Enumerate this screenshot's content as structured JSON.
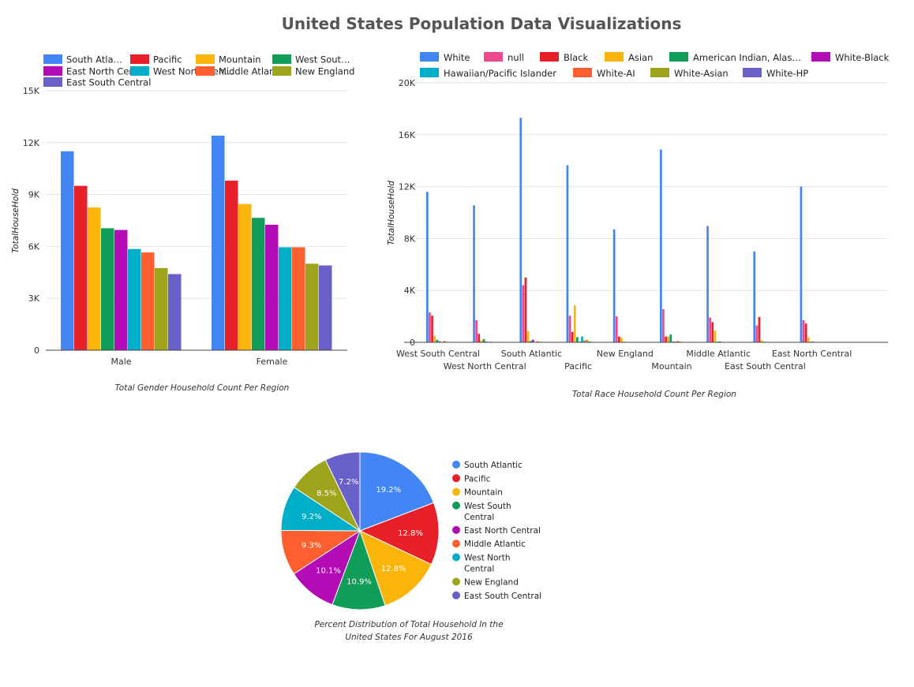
{
  "page": {
    "title": "United States Population Data Visualizations"
  },
  "colors": {
    "regions": {
      "South Atlantic": "#4285f4",
      "Pacific": "#e8202a",
      "Mountain": "#fbb40a",
      "West South Central": "#0f9d58",
      "East North Central": "#b30bb5",
      "West North Central": "#00aec8",
      "Middle Atlantic": "#ff5e2e",
      "New England": "#9ea41b",
      "East South Central": "#6960c9"
    },
    "races": {
      "White": "#4285f4",
      "null": "#f0488f",
      "Black": "#e8202a",
      "Asian": "#fbb40a",
      "American Indian, Alaska Native": "#0f9d58",
      "White-Black": "#b30bb5",
      "Hawaiian/Pacific Islander": "#00aec8",
      "White-AI": "#ff5e2e",
      "White-Asian": "#9ea41b",
      "White-HP": "#6960c9"
    }
  },
  "chart_data": [
    {
      "type": "bar",
      "caption": "Total Gender Household Count Per Region",
      "ylabel": "TotalHouseHold",
      "ylim": [
        0,
        15000
      ],
      "yticks": [
        0,
        3000,
        6000,
        9000,
        12000,
        15000
      ],
      "ytick_labels": [
        "0",
        "3K",
        "6K",
        "9K",
        "12K",
        "15K"
      ],
      "grid": true,
      "legend_position": "top",
      "categories": [
        "Male",
        "Female"
      ],
      "legend_labels": [
        "South Atla…",
        "Pacific",
        "Mountain",
        "West Sout…",
        "East North Cent…",
        "West North Cen…",
        "Middle Atlantic",
        "New England",
        "East South Central"
      ],
      "series": [
        {
          "name": "South Atlantic",
          "values": [
            11500,
            12400
          ]
        },
        {
          "name": "Pacific",
          "values": [
            9500,
            9800
          ]
        },
        {
          "name": "Mountain",
          "values": [
            8250,
            8450
          ]
        },
        {
          "name": "West South Central",
          "values": [
            7050,
            7650
          ]
        },
        {
          "name": "East North Central",
          "values": [
            6950,
            7250
          ]
        },
        {
          "name": "West North Central",
          "values": [
            5850,
            5950
          ]
        },
        {
          "name": "Middle Atlantic",
          "values": [
            5650,
            5950
          ]
        },
        {
          "name": "New England",
          "values": [
            4750,
            5000
          ]
        },
        {
          "name": "East South Central",
          "values": [
            4400,
            4900
          ]
        }
      ]
    },
    {
      "type": "bar",
      "caption": "Total Race Household Count Per Region",
      "ylabel": "TotalHouseHold",
      "ylim": [
        0,
        20000
      ],
      "yticks": [
        0,
        4000,
        8000,
        12000,
        16000,
        20000
      ],
      "ytick_labels": [
        "0",
        "4K",
        "8K",
        "12K",
        "16K",
        "20K"
      ],
      "grid": true,
      "legend_position": "top",
      "categories": [
        "West South Central",
        "West North Central",
        "South Atlantic",
        "Pacific",
        "New England",
        "Mountain",
        "Middle Atlantic",
        "East South Central",
        "East North Central"
      ],
      "legend_labels": [
        "White",
        "null",
        "Black",
        "Asian",
        "American Indian, Alas…",
        "White-Black",
        "Hawaiian/Pacific Islander",
        "White-AI",
        "White-Asian",
        "White-HP"
      ],
      "series": [
        {
          "name": "White",
          "values": [
            11600,
            10550,
            17300,
            13650,
            8700,
            14850,
            8950,
            7000,
            12000
          ]
        },
        {
          "name": "null",
          "values": [
            2300,
            1700,
            4400,
            2050,
            2000,
            2550,
            1900,
            1300,
            1700
          ]
        },
        {
          "name": "Black",
          "values": [
            2050,
            650,
            5000,
            800,
            450,
            450,
            1550,
            1950,
            1450
          ]
        },
        {
          "name": "Asian",
          "values": [
            500,
            150,
            850,
            2850,
            350,
            450,
            900,
            150,
            400
          ]
        },
        {
          "name": "American Indian, Alaska Native",
          "values": [
            200,
            250,
            100,
            400,
            50,
            600,
            50,
            50,
            50
          ]
        },
        {
          "name": "White-Black",
          "values": [
            80,
            60,
            200,
            50,
            30,
            50,
            60,
            30,
            50
          ]
        },
        {
          "name": "Hawaiian/Pacific Islander",
          "values": [
            20,
            20,
            30,
            450,
            10,
            60,
            10,
            5,
            10
          ]
        },
        {
          "name": "White-AI",
          "values": [
            100,
            50,
            80,
            150,
            20,
            100,
            30,
            30,
            30
          ]
        },
        {
          "name": "White-Asian",
          "values": [
            40,
            20,
            40,
            200,
            20,
            50,
            30,
            10,
            20
          ]
        },
        {
          "name": "White-HP",
          "values": [
            10,
            10,
            10,
            60,
            5,
            20,
            5,
            5,
            5
          ]
        }
      ]
    },
    {
      "type": "pie",
      "caption_lines": [
        "Percent Distribution of Total Household In the",
        "United States For August 2016"
      ],
      "legend_position": "right",
      "slices": [
        {
          "label": "South Atlantic",
          "legend_lines": [
            "South Atlantic"
          ],
          "value": 19.2,
          "text": "19.2%"
        },
        {
          "label": "Pacific",
          "legend_lines": [
            "Pacific"
          ],
          "value": 12.8,
          "text": "12.8%"
        },
        {
          "label": "Mountain",
          "legend_lines": [
            "Mountain"
          ],
          "value": 12.8,
          "text": "12.8%"
        },
        {
          "label": "West South Central",
          "legend_lines": [
            "West South",
            "Central"
          ],
          "value": 10.9,
          "text": "10.9%"
        },
        {
          "label": "East North Central",
          "legend_lines": [
            "East North Central"
          ],
          "value": 10.1,
          "text": "10.1%"
        },
        {
          "label": "Middle Atlantic",
          "legend_lines": [
            "Middle Atlantic"
          ],
          "value": 9.3,
          "text": "9.3%"
        },
        {
          "label": "West North Central",
          "legend_lines": [
            "West North",
            "Central"
          ],
          "value": 9.2,
          "text": "9.2%"
        },
        {
          "label": "New England",
          "legend_lines": [
            "New England"
          ],
          "value": 8.5,
          "text": "8.5%"
        },
        {
          "label": "East South Central",
          "legend_lines": [
            "East South Central"
          ],
          "value": 7.2,
          "text": "7.2%"
        }
      ]
    }
  ]
}
